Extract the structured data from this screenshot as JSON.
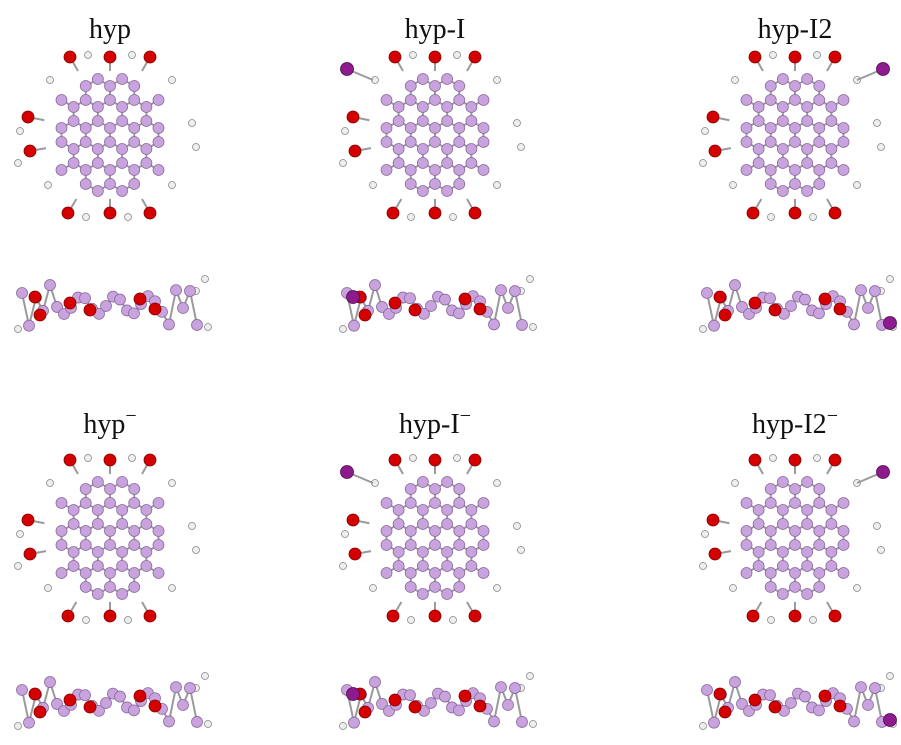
{
  "panels": [
    {
      "label": "hyp"
    },
    {
      "label": "hyp-I"
    },
    {
      "label": "hyp-I2"
    },
    {
      "label": "hyp",
      "charge": "−"
    },
    {
      "label": "hyp-I",
      "charge": "−"
    },
    {
      "label": "hyp-I2",
      "charge": "−"
    }
  ]
}
